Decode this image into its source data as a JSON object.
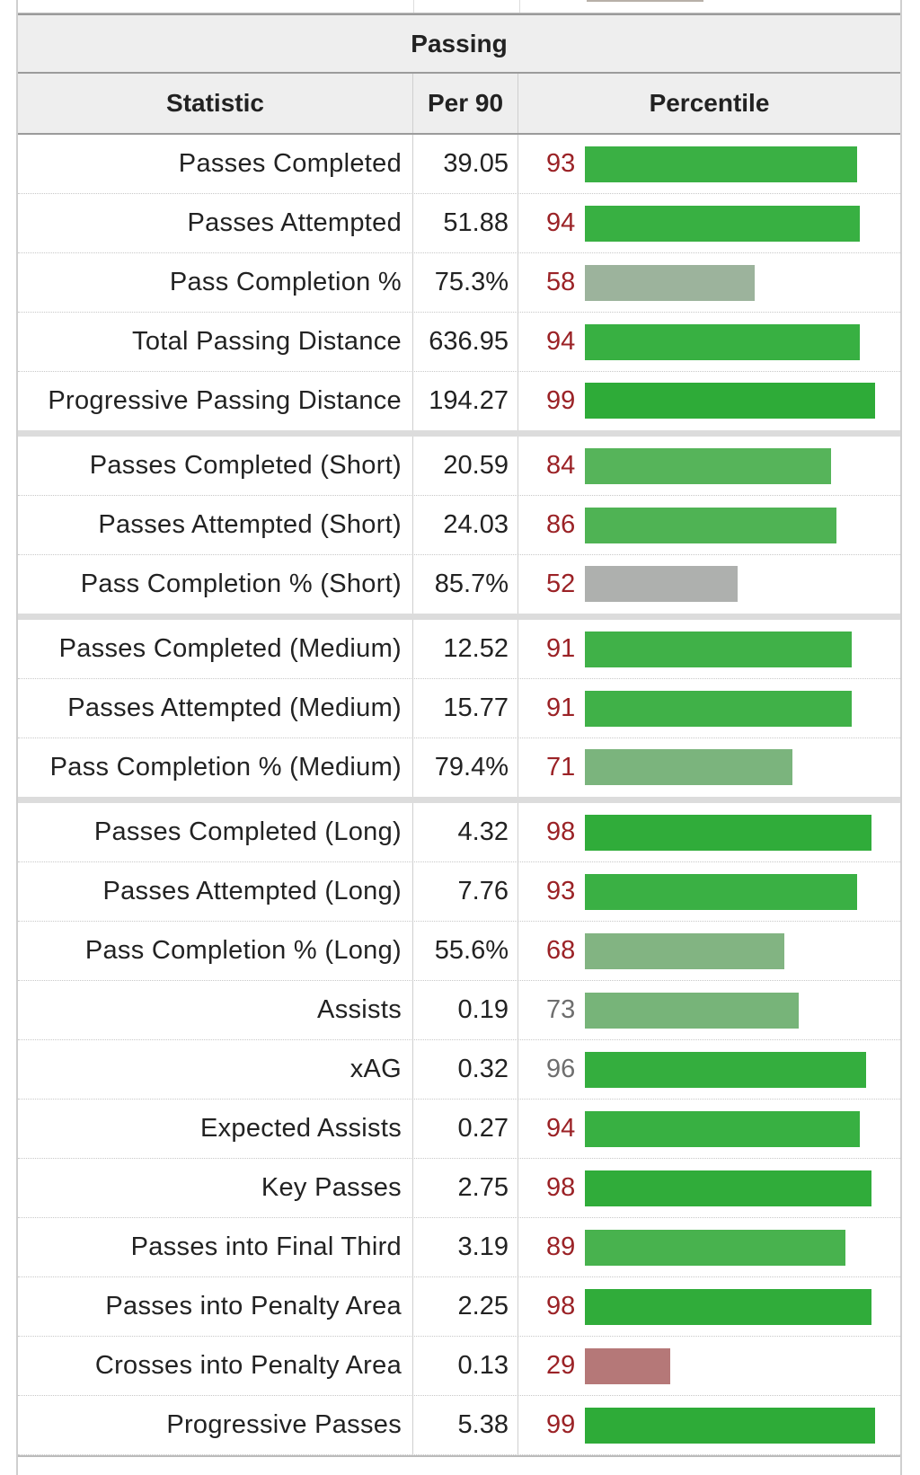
{
  "section_title": "Passing",
  "columns": {
    "statistic": "Statistic",
    "per90": "Per 90",
    "percentile": "Percentile"
  },
  "colors": {
    "elite": "#2eaa3a",
    "high": "#4db351",
    "above_avg": "#7fb27f",
    "mid": "#9fb09f",
    "avg": "#b0b0b0",
    "low": "#b87a7a",
    "percentile_text": "#9b2226",
    "percentile_text_muted": "#6e6e6e"
  },
  "rows": [
    {
      "stat": "Passes Completed",
      "per90": "39.05",
      "percentile": "93",
      "value": 93,
      "color": "#3ab044",
      "muted": false,
      "group_end": false
    },
    {
      "stat": "Passes Attempted",
      "per90": "51.88",
      "percentile": "94",
      "value": 94,
      "color": "#38b042",
      "muted": false,
      "group_end": false
    },
    {
      "stat": "Pass Completion %",
      "per90": "75.3%",
      "percentile": "58",
      "value": 58,
      "color": "#9cb39c",
      "muted": false,
      "group_end": false
    },
    {
      "stat": "Total Passing Distance",
      "per90": "636.95",
      "percentile": "94",
      "value": 94,
      "color": "#38b042",
      "muted": false,
      "group_end": false
    },
    {
      "stat": "Progressive Passing Distance",
      "per90": "194.27",
      "percentile": "99",
      "value": 99,
      "color": "#2eab38",
      "muted": false,
      "group_end": true
    },
    {
      "stat": "Passes Completed (Short)",
      "per90": "20.59",
      "percentile": "84",
      "value": 84,
      "color": "#56b45a",
      "muted": false,
      "group_end": false
    },
    {
      "stat": "Passes Attempted (Short)",
      "per90": "24.03",
      "percentile": "86",
      "value": 86,
      "color": "#4fb354",
      "muted": false,
      "group_end": false
    },
    {
      "stat": "Pass Completion % (Short)",
      "per90": "85.7%",
      "percentile": "52",
      "value": 52,
      "color": "#aeb0ae",
      "muted": false,
      "group_end": true
    },
    {
      "stat": "Passes Completed (Medium)",
      "per90": "12.52",
      "percentile": "91",
      "value": 91,
      "color": "#40b148",
      "muted": false,
      "group_end": false
    },
    {
      "stat": "Passes Attempted (Medium)",
      "per90": "15.77",
      "percentile": "91",
      "value": 91,
      "color": "#40b148",
      "muted": false,
      "group_end": false
    },
    {
      "stat": "Pass Completion % (Medium)",
      "per90": "79.4%",
      "percentile": "71",
      "value": 71,
      "color": "#7bb47d",
      "muted": false,
      "group_end": true
    },
    {
      "stat": "Passes Completed (Long)",
      "per90": "4.32",
      "percentile": "98",
      "value": 98,
      "color": "#30ac3a",
      "muted": false,
      "group_end": false
    },
    {
      "stat": "Passes Attempted (Long)",
      "per90": "7.76",
      "percentile": "93",
      "value": 93,
      "color": "#3ab044",
      "muted": false,
      "group_end": false
    },
    {
      "stat": "Pass Completion % (Long)",
      "per90": "55.6%",
      "percentile": "68",
      "value": 68,
      "color": "#82b482",
      "muted": false,
      "group_end": false
    },
    {
      "stat": "Assists",
      "per90": "0.19",
      "percentile": "73",
      "value": 73,
      "color": "#77b479",
      "muted": true,
      "group_end": false
    },
    {
      "stat": "xAG",
      "per90": "0.32",
      "percentile": "96",
      "value": 96,
      "color": "#34ae3e",
      "muted": true,
      "group_end": false
    },
    {
      "stat": "Expected Assists",
      "per90": "0.27",
      "percentile": "94",
      "value": 94,
      "color": "#38b042",
      "muted": false,
      "group_end": false
    },
    {
      "stat": "Key Passes",
      "per90": "2.75",
      "percentile": "98",
      "value": 98,
      "color": "#30ac3a",
      "muted": false,
      "group_end": false
    },
    {
      "stat": "Passes into Final Third",
      "per90": "3.19",
      "percentile": "89",
      "value": 89,
      "color": "#48b24e",
      "muted": false,
      "group_end": false
    },
    {
      "stat": "Passes into Penalty Area",
      "per90": "2.25",
      "percentile": "98",
      "value": 98,
      "color": "#30ac3a",
      "muted": false,
      "group_end": false
    },
    {
      "stat": "Crosses into Penalty Area",
      "per90": "0.13",
      "percentile": "29",
      "value": 29,
      "color": "#b57878",
      "muted": false,
      "group_end": false
    },
    {
      "stat": "Progressive Passes",
      "per90": "5.38",
      "percentile": "99",
      "value": 99,
      "color": "#2eab38",
      "muted": false,
      "group_end": false
    }
  ]
}
